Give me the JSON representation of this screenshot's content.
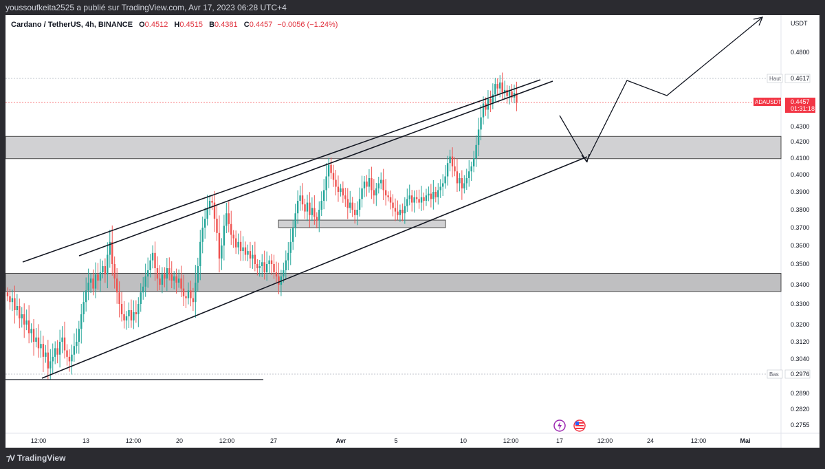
{
  "header": {
    "publisher_text": "youssoufkeita2525 a publié sur TradingView.com, Avr 17, 2023 06:28 UTC+4"
  },
  "legend": {
    "symbol": "Cardano / TetherUS, 4h, BINANCE",
    "open_label": "O",
    "open_value": "0.4512",
    "high_label": "H",
    "high_value": "0.4515",
    "low_label": "B",
    "low_value": "0.4381",
    "close_label": "C",
    "close_value": "0.4457",
    "change": "−0.0056 (−1.24%)"
  },
  "footer": {
    "brand": "TradingView"
  },
  "chart_data": {
    "type": "candlestick",
    "y_unit_label": "USDT",
    "y_ticks": [
      "0.4800",
      "0.4300",
      "0.4200",
      "0.4100",
      "0.4000",
      "0.3900",
      "0.3800",
      "0.3700",
      "0.3600",
      "0.3500",
      "0.3400",
      "0.3300",
      "0.3200",
      "0.3120",
      "0.3040",
      "0.2890",
      "0.2820",
      "0.2755"
    ],
    "x_ticks": [
      "12:00",
      "13",
      "12:00",
      "20",
      "12:00",
      "27",
      "Avr",
      "5",
      "10",
      "12:00",
      "17",
      "12:00",
      "24",
      "12:00",
      "Mai"
    ],
    "price_markers": [
      {
        "label": "Haut",
        "value": "0.4617",
        "color": "#5d606b"
      },
      {
        "label": "Bas",
        "value": "0.2976",
        "color": "#5d606b"
      },
      {
        "label": "ADAUSDT",
        "value": "0.4457",
        "countdown": "01:31:18",
        "color": "#f23645"
      }
    ],
    "series_closes": [
      0.334,
      0.331,
      0.333,
      0.327,
      0.329,
      0.323,
      0.325,
      0.32,
      0.322,
      0.316,
      0.318,
      0.312,
      0.314,
      0.309,
      0.311,
      0.305,
      0.307,
      0.3,
      0.303,
      0.305,
      0.309,
      0.306,
      0.312,
      0.314,
      0.308,
      0.305,
      0.303,
      0.306,
      0.31,
      0.312,
      0.318,
      0.325,
      0.331,
      0.337,
      0.341,
      0.343,
      0.338,
      0.345,
      0.342,
      0.346,
      0.349,
      0.345,
      0.355,
      0.362,
      0.35,
      0.343,
      0.336,
      0.33,
      0.325,
      0.322,
      0.324,
      0.327,
      0.322,
      0.326,
      0.325,
      0.33,
      0.336,
      0.339,
      0.344,
      0.347,
      0.352,
      0.356,
      0.348,
      0.343,
      0.34,
      0.345,
      0.343,
      0.348,
      0.345,
      0.342,
      0.344,
      0.341,
      0.343,
      0.338,
      0.334,
      0.333,
      0.337,
      0.333,
      0.331,
      0.341,
      0.349,
      0.362,
      0.37,
      0.375,
      0.381,
      0.385,
      0.384,
      0.375,
      0.367,
      0.353,
      0.36,
      0.371,
      0.378,
      0.372,
      0.366,
      0.364,
      0.359,
      0.362,
      0.357,
      0.359,
      0.355,
      0.357,
      0.353,
      0.355,
      0.35,
      0.348,
      0.349,
      0.351,
      0.346,
      0.35,
      0.352,
      0.35,
      0.346,
      0.344,
      0.34,
      0.344,
      0.347,
      0.352,
      0.356,
      0.362,
      0.37,
      0.378,
      0.385,
      0.388,
      0.383,
      0.379,
      0.384,
      0.377,
      0.381,
      0.376,
      0.374,
      0.38,
      0.385,
      0.391,
      0.399,
      0.406,
      0.401,
      0.397,
      0.393,
      0.39,
      0.392,
      0.388,
      0.386,
      0.381,
      0.384,
      0.38,
      0.377,
      0.38,
      0.386,
      0.392,
      0.396,
      0.393,
      0.398,
      0.391,
      0.388,
      0.392,
      0.395,
      0.397,
      0.391,
      0.388,
      0.387,
      0.384,
      0.381,
      0.379,
      0.377,
      0.38,
      0.378,
      0.382,
      0.386,
      0.388,
      0.384,
      0.387,
      0.386,
      0.384,
      0.387,
      0.385,
      0.388,
      0.389,
      0.386,
      0.39,
      0.387,
      0.391,
      0.393,
      0.395,
      0.399,
      0.407,
      0.411,
      0.405,
      0.402,
      0.395,
      0.398,
      0.392,
      0.395,
      0.398,
      0.402,
      0.405,
      0.41,
      0.418,
      0.428,
      0.436,
      0.445,
      0.441,
      0.448,
      0.445,
      0.451,
      0.458,
      0.455,
      0.459,
      0.452,
      0.454,
      0.45,
      0.453,
      0.449,
      0.452,
      0.4457
    ]
  }
}
